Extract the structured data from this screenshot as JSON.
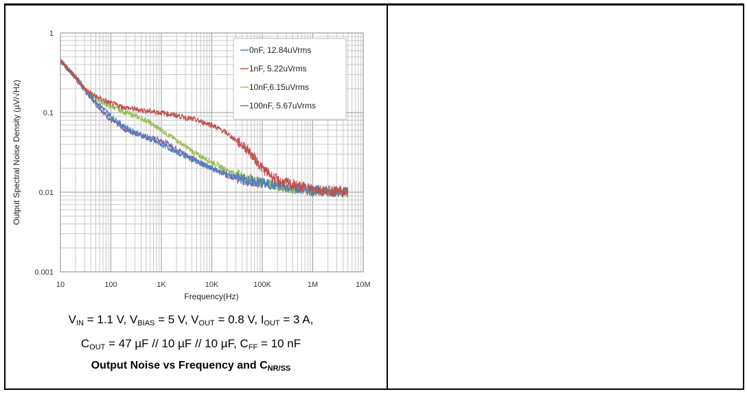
{
  "chart_data": {
    "type": "line",
    "title": "",
    "xlabel": "Frequency(Hz)",
    "ylabel": "Output Spectral Noise Density (µV/√Hz)",
    "xscale": "log",
    "yscale": "log",
    "xlim": [
      10,
      10000000
    ],
    "ylim": [
      0.001,
      1
    ],
    "x_ticks": [
      "10",
      "100",
      "1K",
      "10K",
      "100K",
      "1M",
      "10M"
    ],
    "y_ticks": [
      "1",
      "0.1",
      "0.01",
      "0.001"
    ],
    "grid": true,
    "legend_position": "top-right",
    "series": [
      {
        "name": "0nF, 12.84uVrms",
        "color": "#4f81bd",
        "x": [
          10,
          20,
          30,
          50,
          100,
          200,
          500,
          1000,
          2000,
          5000,
          10000,
          20000,
          50000,
          100000,
          200000,
          500000,
          1000000,
          2000000,
          5000000
        ],
        "y": [
          0.45,
          0.28,
          0.2,
          0.14,
          0.09,
          0.065,
          0.048,
          0.04,
          0.032,
          0.024,
          0.02,
          0.017,
          0.014,
          0.013,
          0.012,
          0.011,
          0.0105,
          0.0102,
          0.01
        ]
      },
      {
        "name": "1nF, 5.22uVrms",
        "color": "#c0504d",
        "x": [
          10,
          20,
          30,
          50,
          100,
          200,
          500,
          1000,
          2000,
          5000,
          10000,
          20000,
          50000,
          100000,
          200000,
          500000,
          1000000,
          2000000,
          5000000
        ],
        "y": [
          0.45,
          0.28,
          0.2,
          0.16,
          0.13,
          0.115,
          0.105,
          0.1,
          0.092,
          0.08,
          0.07,
          0.055,
          0.035,
          0.02,
          0.014,
          0.012,
          0.011,
          0.0105,
          0.01
        ]
      },
      {
        "name": "10nF,6.15uVrms",
        "color": "#9bbb59",
        "x": [
          10,
          20,
          30,
          50,
          100,
          200,
          500,
          1000,
          2000,
          5000,
          10000,
          20000,
          50000,
          100000,
          200000,
          500000,
          1000000,
          2000000,
          5000000
        ],
        "y": [
          0.45,
          0.28,
          0.2,
          0.15,
          0.12,
          0.1,
          0.08,
          0.06,
          0.045,
          0.03,
          0.024,
          0.019,
          0.015,
          0.013,
          0.012,
          0.011,
          0.0105,
          0.0102,
          0.01
        ]
      },
      {
        "name": "100nF, 5.67uVrms",
        "color": "#8064a2",
        "x": [
          10,
          20,
          30,
          50,
          100,
          200,
          500,
          1000,
          2000,
          5000,
          10000,
          20000,
          50000,
          100000
        ],
        "y": [
          0.45,
          0.27,
          0.19,
          0.13,
          0.08,
          0.06,
          0.05,
          0.045,
          0.035,
          0.025,
          0.02,
          0.016,
          0.014,
          0.013
        ]
      }
    ]
  },
  "captions": {
    "line1": [
      {
        "t": "V"
      },
      {
        "s": "IN"
      },
      {
        "t": " = 1.1 V, V"
      },
      {
        "s": "BIAS"
      },
      {
        "t": " = 5 V, V"
      },
      {
        "s": "OUT"
      },
      {
        "t": " = 0.8 V, I"
      },
      {
        "s": "OUT"
      },
      {
        "t": " = 3 A,"
      }
    ],
    "line2": [
      {
        "t": "C"
      },
      {
        "s": "OUT"
      },
      {
        "t": " = 47 µF // 10 µF // 10 µF, C"
      },
      {
        "s": "FF"
      },
      {
        "t": " = 10 nF"
      }
    ],
    "line3": [
      {
        "t": "Output Noise vs Frequency and C"
      },
      {
        "s": "NR/SS"
      }
    ]
  }
}
